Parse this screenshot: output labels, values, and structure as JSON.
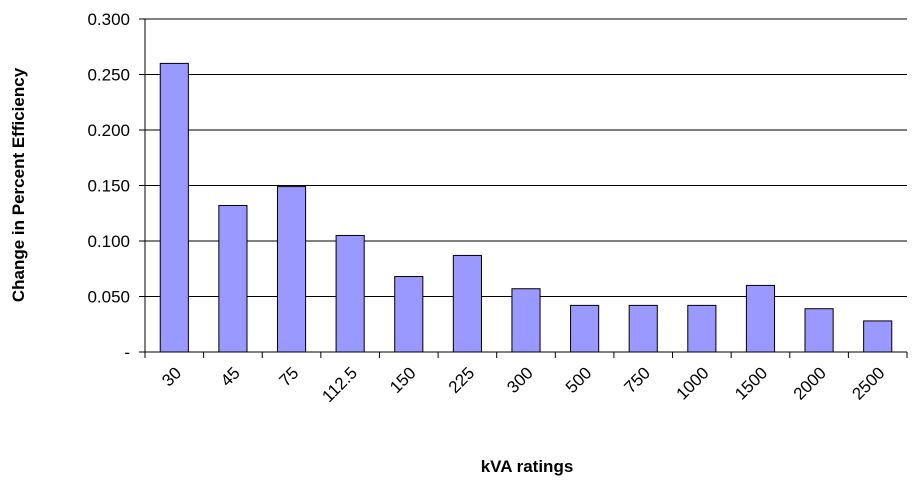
{
  "chart_data": {
    "type": "bar",
    "x_label": "kVA ratings",
    "y_label": "Change in Percent Efficiency",
    "categories": [
      "30",
      "45",
      "75",
      "112.5",
      "150",
      "225",
      "300",
      "500",
      "750",
      "1000",
      "1500",
      "2000",
      "2500"
    ],
    "values": [
      0.26,
      0.132,
      0.149,
      0.105,
      0.068,
      0.087,
      0.057,
      0.042,
      0.042,
      0.042,
      0.06,
      0.039,
      0.028
    ],
    "color": "#9999ff",
    "ylim": [
      0,
      0.3
    ],
    "yticks": [
      {
        "value": 0,
        "label": "-"
      },
      {
        "value": 0.05,
        "label": "0.050"
      },
      {
        "value": 0.1,
        "label": "0.100"
      },
      {
        "value": 0.15,
        "label": "0.150"
      },
      {
        "value": 0.2,
        "label": "0.200"
      },
      {
        "value": 0.25,
        "label": "0.250"
      },
      {
        "value": 0.3,
        "label": "0.300"
      }
    ],
    "grid": true
  }
}
